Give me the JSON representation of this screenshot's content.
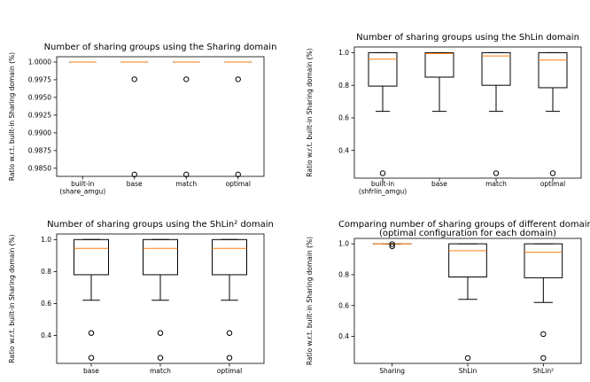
{
  "chart_data": [
    {
      "type": "box",
      "title": [
        "Number of sharing groups using the Sharing domain"
      ],
      "ylabel": "Ratio w.r.t. built-in Sharing domain (%)",
      "ylim": [
        0.98385,
        1.00075
      ],
      "yticks": [
        0.985,
        0.9875,
        0.99,
        0.9925,
        0.995,
        0.9975,
        1.0
      ],
      "ytick_labels": [
        "0.9850",
        "0.9875",
        "0.9900",
        "0.9925",
        "0.9950",
        "0.9975",
        "1.0000"
      ],
      "categories": [
        [
          "built-in",
          "(share_amgu)"
        ],
        [
          "base"
        ],
        [
          "match"
        ],
        [
          "optimal"
        ]
      ],
      "boxes": [
        {
          "q1": 1.0,
          "median": 1.0,
          "q3": 1.0,
          "whisker_low": 1.0,
          "whisker_high": 1.0,
          "outliers": []
        },
        {
          "q1": 1.0,
          "median": 1.0,
          "q3": 1.0,
          "whisker_low": 1.0,
          "whisker_high": 1.0,
          "outliers": [
            0.99757,
            0.98412
          ]
        },
        {
          "q1": 1.0,
          "median": 1.0,
          "q3": 1.0,
          "whisker_low": 1.0,
          "whisker_high": 1.0,
          "outliers": [
            0.99757,
            0.98412
          ]
        },
        {
          "q1": 1.0,
          "median": 1.0,
          "q3": 1.0,
          "whisker_low": 1.0,
          "whisker_high": 1.0,
          "outliers": [
            0.99757,
            0.98412
          ]
        }
      ]
    },
    {
      "type": "box",
      "title": [
        "Number of sharing groups using the ShLin domain"
      ],
      "ylabel": "Ratio w.r.t. built-in Sharing domain (%)",
      "ylim": [
        0.23,
        1.035
      ],
      "yticks": [
        0.4,
        0.6,
        0.8,
        1.0
      ],
      "ytick_labels": [
        "0.4",
        "0.6",
        "0.8",
        "1.0"
      ],
      "categories": [
        [
          "built-in",
          "(shfrlin_amgu)"
        ],
        [
          "base"
        ],
        [
          "match"
        ],
        [
          "optimal"
        ]
      ],
      "boxes": [
        {
          "q1": 0.795,
          "median": 0.96,
          "q3": 1.0,
          "whisker_low": 0.64,
          "whisker_high": 1.0,
          "outliers": [
            0.26
          ]
        },
        {
          "q1": 0.85,
          "median": 0.995,
          "q3": 1.0,
          "whisker_low": 0.64,
          "whisker_high": 1.0,
          "outliers": []
        },
        {
          "q1": 0.8,
          "median": 0.98,
          "q3": 1.0,
          "whisker_low": 0.64,
          "whisker_high": 1.0,
          "outliers": [
            0.26
          ]
        },
        {
          "q1": 0.785,
          "median": 0.955,
          "q3": 1.0,
          "whisker_low": 0.64,
          "whisker_high": 1.0,
          "outliers": [
            0.26
          ]
        }
      ]
    },
    {
      "type": "box",
      "title": [
        "Number of sharing groups using the ShLin² domain"
      ],
      "ylabel": "Ratio w.r.t. built-in Sharing domain (%)",
      "ylim": [
        0.225,
        1.035
      ],
      "yticks": [
        0.4,
        0.6,
        0.8,
        1.0
      ],
      "ytick_labels": [
        "0.4",
        "0.6",
        "0.8",
        "1.0"
      ],
      "categories": [
        [
          "base"
        ],
        [
          "match"
        ],
        [
          "optimal"
        ]
      ],
      "boxes": [
        {
          "q1": 0.78,
          "median": 0.945,
          "q3": 1.0,
          "whisker_low": 0.62,
          "whisker_high": 1.0,
          "outliers": [
            0.415,
            0.26
          ]
        },
        {
          "q1": 0.78,
          "median": 0.945,
          "q3": 1.0,
          "whisker_low": 0.62,
          "whisker_high": 1.0,
          "outliers": [
            0.415,
            0.26
          ]
        },
        {
          "q1": 0.78,
          "median": 0.945,
          "q3": 1.0,
          "whisker_low": 0.62,
          "whisker_high": 1.0,
          "outliers": [
            0.415,
            0.26
          ]
        }
      ]
    },
    {
      "type": "box",
      "title": [
        "Comparing number of sharing groups of different domains",
        "(optimal configuration for each domain)"
      ],
      "ylabel": "Ratio w.r.t. built-in Sharing domain (%)",
      "ylim": [
        0.225,
        1.035
      ],
      "yticks": [
        0.4,
        0.6,
        0.8,
        1.0
      ],
      "ytick_labels": [
        "0.4",
        "0.6",
        "0.8",
        "1.0"
      ],
      "categories": [
        [
          "Sharing"
        ],
        [
          "ShLin"
        ],
        [
          "ShLin²"
        ]
      ],
      "boxes": [
        {
          "q1": 1.0,
          "median": 1.0,
          "q3": 1.0,
          "whisker_low": 1.0,
          "whisker_high": 1.0,
          "outliers": [
            0.9975,
            0.984
          ]
        },
        {
          "q1": 0.785,
          "median": 0.955,
          "q3": 1.0,
          "whisker_low": 0.64,
          "whisker_high": 1.0,
          "outliers": [
            0.26
          ]
        },
        {
          "q1": 0.78,
          "median": 0.945,
          "q3": 1.0,
          "whisker_low": 0.62,
          "whisker_high": 1.0,
          "outliers": [
            0.415,
            0.26
          ]
        }
      ]
    }
  ]
}
